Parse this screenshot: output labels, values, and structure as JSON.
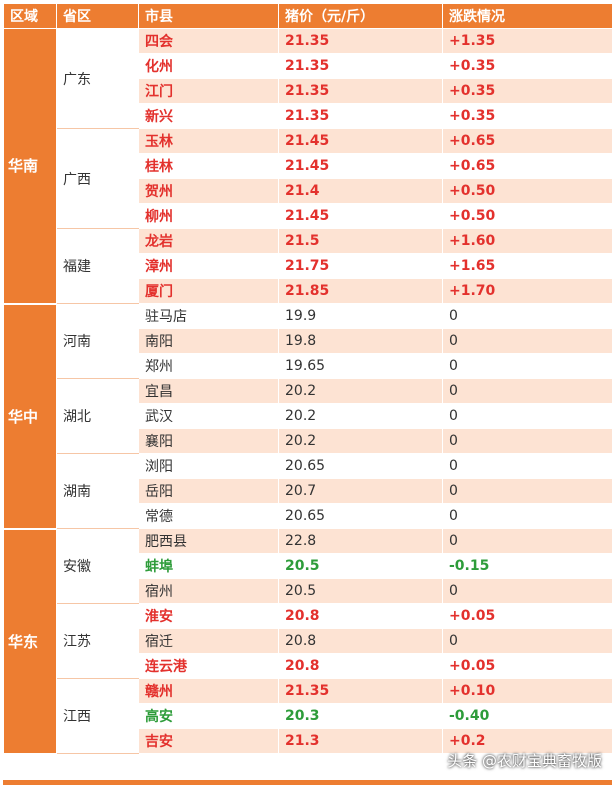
{
  "header": {
    "region": "区域",
    "province": "省区",
    "city": "市县",
    "price": "猪价（元/斤）",
    "change": "涨跌情况"
  },
  "colors": {
    "header_bg": "#ed7d31",
    "stripe": "#fde3d3",
    "rise": "#e3312d",
    "fall": "#2e9c3a"
  },
  "groups": [
    {
      "region": "华南",
      "provinces": [
        {
          "name": "广东",
          "rows": [
            {
              "city": "四会",
              "price": "21.35",
              "change": "+1.35"
            },
            {
              "city": "化州",
              "price": "21.35",
              "change": "+0.35"
            },
            {
              "city": "江门",
              "price": "21.35",
              "change": "+0.35"
            },
            {
              "city": "新兴",
              "price": "21.35",
              "change": "+0.35"
            }
          ]
        },
        {
          "name": "广西",
          "rows": [
            {
              "city": "玉林",
              "price": "21.45",
              "change": "+0.65"
            },
            {
              "city": "桂林",
              "price": "21.45",
              "change": "+0.65"
            },
            {
              "city": "贺州",
              "price": "21.4",
              "change": "+0.50"
            },
            {
              "city": "柳州",
              "price": "21.45",
              "change": "+0.50"
            }
          ]
        },
        {
          "name": "福建",
          "rows": [
            {
              "city": "龙岩",
              "price": "21.5",
              "change": "+1.60"
            },
            {
              "city": "漳州",
              "price": "21.75",
              "change": "+1.65"
            },
            {
              "city": "厦门",
              "price": "21.85",
              "change": "+1.70"
            }
          ]
        }
      ]
    },
    {
      "region": "华中",
      "provinces": [
        {
          "name": "河南",
          "rows": [
            {
              "city": "驻马店",
              "price": "19.9",
              "change": "0"
            },
            {
              "city": "南阳",
              "price": "19.8",
              "change": "0"
            },
            {
              "city": "郑州",
              "price": "19.65",
              "change": "0"
            }
          ]
        },
        {
          "name": "湖北",
          "rows": [
            {
              "city": "宜昌",
              "price": "20.2",
              "change": "0"
            },
            {
              "city": "武汉",
              "price": "20.2",
              "change": "0"
            },
            {
              "city": "襄阳",
              "price": "20.2",
              "change": "0"
            }
          ]
        },
        {
          "name": "湖南",
          "rows": [
            {
              "city": "浏阳",
              "price": "20.65",
              "change": "0"
            },
            {
              "city": "岳阳",
              "price": "20.7",
              "change": "0"
            },
            {
              "city": "常德",
              "price": "20.65",
              "change": "0"
            }
          ]
        }
      ]
    },
    {
      "region": "华东",
      "provinces": [
        {
          "name": "安徽",
          "rows": [
            {
              "city": "肥西县",
              "price": "22.8",
              "change": "0"
            },
            {
              "city": "蚌埠",
              "price": "20.5",
              "change": "-0.15"
            },
            {
              "city": "宿州",
              "price": "20.5",
              "change": "0"
            }
          ]
        },
        {
          "name": "江苏",
          "rows": [
            {
              "city": "淮安",
              "price": "20.8",
              "change": "+0.05"
            },
            {
              "city": "宿迁",
              "price": "20.8",
              "change": "0"
            },
            {
              "city": "连云港",
              "price": "20.8",
              "change": "+0.05"
            }
          ]
        },
        {
          "name": "江西",
          "rows": [
            {
              "city": "赣州",
              "price": "21.35",
              "change": "+0.10"
            },
            {
              "city": "高安",
              "price": "20.3",
              "change": "-0.40"
            },
            {
              "city": "吉安",
              "price": "21.3",
              "change": "+0.2"
            }
          ]
        }
      ]
    }
  ],
  "watermark": "头条 @农财宝典畜牧版"
}
